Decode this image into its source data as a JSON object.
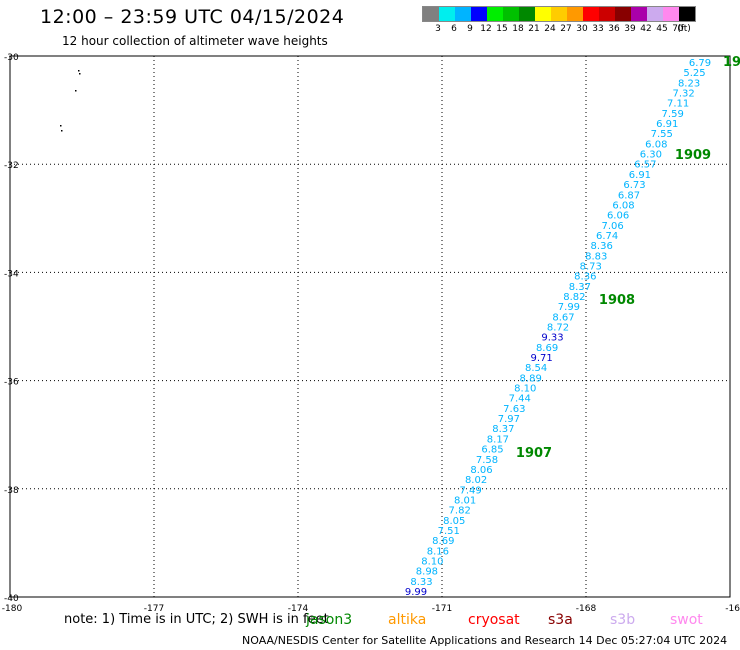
{
  "header": {
    "title": "12:00 – 23:59 UTC 04/15/2024",
    "subtitle": "12 hour collection of altimeter wave heights"
  },
  "scale": {
    "colors": [
      "#808080",
      "#00eeee",
      "#00b4ff",
      "#0000ff",
      "#00ee00",
      "#00c000",
      "#008800",
      "#ffff00",
      "#ffcc00",
      "#ff9900",
      "#ff0000",
      "#cc0000",
      "#880000",
      "#aa00aa",
      "#ccaaee",
      "#ff88ee",
      "#000000"
    ],
    "labels": [
      "3",
      "6",
      "9",
      "12",
      "15",
      "18",
      "21",
      "24",
      "27",
      "30",
      "33",
      "36",
      "39",
      "42",
      "45",
      "70",
      "(ft)"
    ]
  },
  "map": {
    "y_labels": [
      "-30",
      "-32",
      "-34",
      "-36",
      "-38",
      "-40"
    ],
    "x_labels": [
      "-180",
      "-177",
      "-174",
      "-171",
      "-168",
      "-16"
    ]
  },
  "chart_data": {
    "type": "scatter",
    "xlim": [
      -180,
      -165
    ],
    "ylim": [
      -40,
      -30
    ],
    "grid": true,
    "orbits": [
      {
        "label": "1909",
        "lon": -166.2,
        "lat": -31.8
      },
      {
        "label": "1908",
        "lon": -167.4,
        "lat": -34.6
      },
      {
        "label": "1907",
        "lon": -169.2,
        "lat": -37.3
      },
      {
        "label": "19",
        "lon": -165.0,
        "lat": -30.0
      }
    ],
    "points": [
      {
        "v": "6.79",
        "c": "#00b4ff"
      },
      {
        "v": "5.25",
        "c": "#00b4ff"
      },
      {
        "v": "8.23",
        "c": "#00b4ff"
      },
      {
        "v": "7.32",
        "c": "#00b4ff"
      },
      {
        "v": "7.11",
        "c": "#00b4ff"
      },
      {
        "v": "7.59",
        "c": "#00b4ff"
      },
      {
        "v": "6.91",
        "c": "#00b4ff"
      },
      {
        "v": "7.55",
        "c": "#00b4ff"
      },
      {
        "v": "6.08",
        "c": "#00b4ff"
      },
      {
        "v": "6.30",
        "c": "#00b4ff"
      },
      {
        "v": "6.57",
        "c": "#00b4ff"
      },
      {
        "v": "6.91",
        "c": "#00b4ff"
      },
      {
        "v": "6.73",
        "c": "#00b4ff"
      },
      {
        "v": "6.87",
        "c": "#00b4ff"
      },
      {
        "v": "6.08",
        "c": "#00b4ff"
      },
      {
        "v": "6.06",
        "c": "#00b4ff"
      },
      {
        "v": "7.06",
        "c": "#00b4ff"
      },
      {
        "v": "6.74",
        "c": "#00b4ff"
      },
      {
        "v": "8.36",
        "c": "#00b4ff"
      },
      {
        "v": "8.83",
        "c": "#00b4ff"
      },
      {
        "v": "8.73",
        "c": "#00b4ff"
      },
      {
        "v": "8.36",
        "c": "#00b4ff"
      },
      {
        "v": "8.37",
        "c": "#00b4ff"
      },
      {
        "v": "8.82",
        "c": "#00b4ff"
      },
      {
        "v": "7.99",
        "c": "#00b4ff"
      },
      {
        "v": "8.67",
        "c": "#00b4ff"
      },
      {
        "v": "8.72",
        "c": "#00b4ff"
      },
      {
        "v": "9.33",
        "c": "#0000cc"
      },
      {
        "v": "8.69",
        "c": "#00b4ff"
      },
      {
        "v": "9.71",
        "c": "#0000cc"
      },
      {
        "v": "8.54",
        "c": "#00b4ff"
      },
      {
        "v": "8.89",
        "c": "#00b4ff"
      },
      {
        "v": "8.10",
        "c": "#00b4ff"
      },
      {
        "v": "7.44",
        "c": "#00b4ff"
      },
      {
        "v": "7.63",
        "c": "#00b4ff"
      },
      {
        "v": "7.97",
        "c": "#00b4ff"
      },
      {
        "v": "8.37",
        "c": "#00b4ff"
      },
      {
        "v": "8.17",
        "c": "#00b4ff"
      },
      {
        "v": "6.85",
        "c": "#00b4ff"
      },
      {
        "v": "7.58",
        "c": "#00b4ff"
      },
      {
        "v": "8.06",
        "c": "#00b4ff"
      },
      {
        "v": "8.02",
        "c": "#00b4ff"
      },
      {
        "v": "7.49",
        "c": "#00b4ff"
      },
      {
        "v": "8.01",
        "c": "#00b4ff"
      },
      {
        "v": "7.82",
        "c": "#00b4ff"
      },
      {
        "v": "8.05",
        "c": "#00b4ff"
      },
      {
        "v": "7.51",
        "c": "#00b4ff"
      },
      {
        "v": "8.69",
        "c": "#00b4ff"
      },
      {
        "v": "8.16",
        "c": "#00b4ff"
      },
      {
        "v": "8.10",
        "c": "#00b4ff"
      },
      {
        "v": "8.98",
        "c": "#00b4ff"
      },
      {
        "v": "8.33",
        "c": "#00b4ff"
      },
      {
        "v": "9.99",
        "c": "#0000cc"
      }
    ]
  },
  "note": "note:  1) Time is in UTC; 2) SWH is in feet",
  "legend": [
    {
      "label": "jason3",
      "color": "#008800"
    },
    {
      "label": "altika",
      "color": "#ff9900"
    },
    {
      "label": "cryosat",
      "color": "#ff0000"
    },
    {
      "label": "s3a",
      "color": "#880000"
    },
    {
      "label": "s3b",
      "color": "#ccaaee"
    },
    {
      "label": "swot",
      "color": "#ff88ee"
    }
  ],
  "footer": "NOAA/NESDIS Center for Satellite Applications and Research    14 Dec 05:27:04 UTC 2024"
}
